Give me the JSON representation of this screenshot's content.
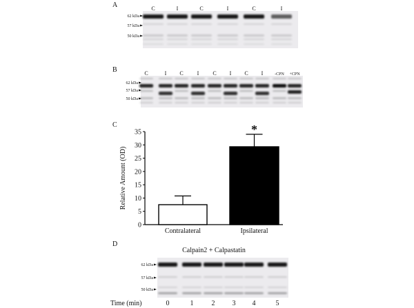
{
  "panel_a": {
    "label": "A",
    "lanes": [
      "C",
      "I",
      "C",
      "I",
      "C",
      "I"
    ],
    "markers": [
      "62 kDa",
      "57 kDa",
      "50 kDa"
    ]
  },
  "panel_b": {
    "label": "B",
    "lanes": [
      "C",
      "I",
      "C",
      "I",
      "C",
      "I",
      "C",
      "I",
      "-CPN",
      "+CPN"
    ],
    "markers": [
      "62 kDa",
      "57 kDa",
      "50 kDa"
    ]
  },
  "panel_c": {
    "label": "C",
    "significance_mark": "*"
  },
  "panel_d": {
    "label": "D",
    "title": "Calpain2 + Calpastatin",
    "markers": [
      "62 kDa",
      "57 kDa",
      "50 kDa"
    ],
    "time_label": "Time (min)",
    "times": [
      "0",
      "1",
      "2",
      "3",
      "4",
      "5"
    ]
  },
  "chart_data": {
    "type": "bar",
    "title": "",
    "xlabel": "",
    "ylabel": "Relative Amount (OD)",
    "categories": [
      "Contralateral",
      "Ipsilateral"
    ],
    "values": [
      7.5,
      29.3
    ],
    "error_upper": [
      10.8,
      34.0
    ],
    "bar_colors": [
      "#ffffff",
      "#000000"
    ],
    "ylim": [
      0,
      35
    ],
    "yticks": [
      0,
      5,
      10,
      15,
      20,
      25,
      30,
      35
    ],
    "grid": false,
    "annotations": [
      {
        "category": "Ipsilateral",
        "text": "*"
      }
    ]
  }
}
